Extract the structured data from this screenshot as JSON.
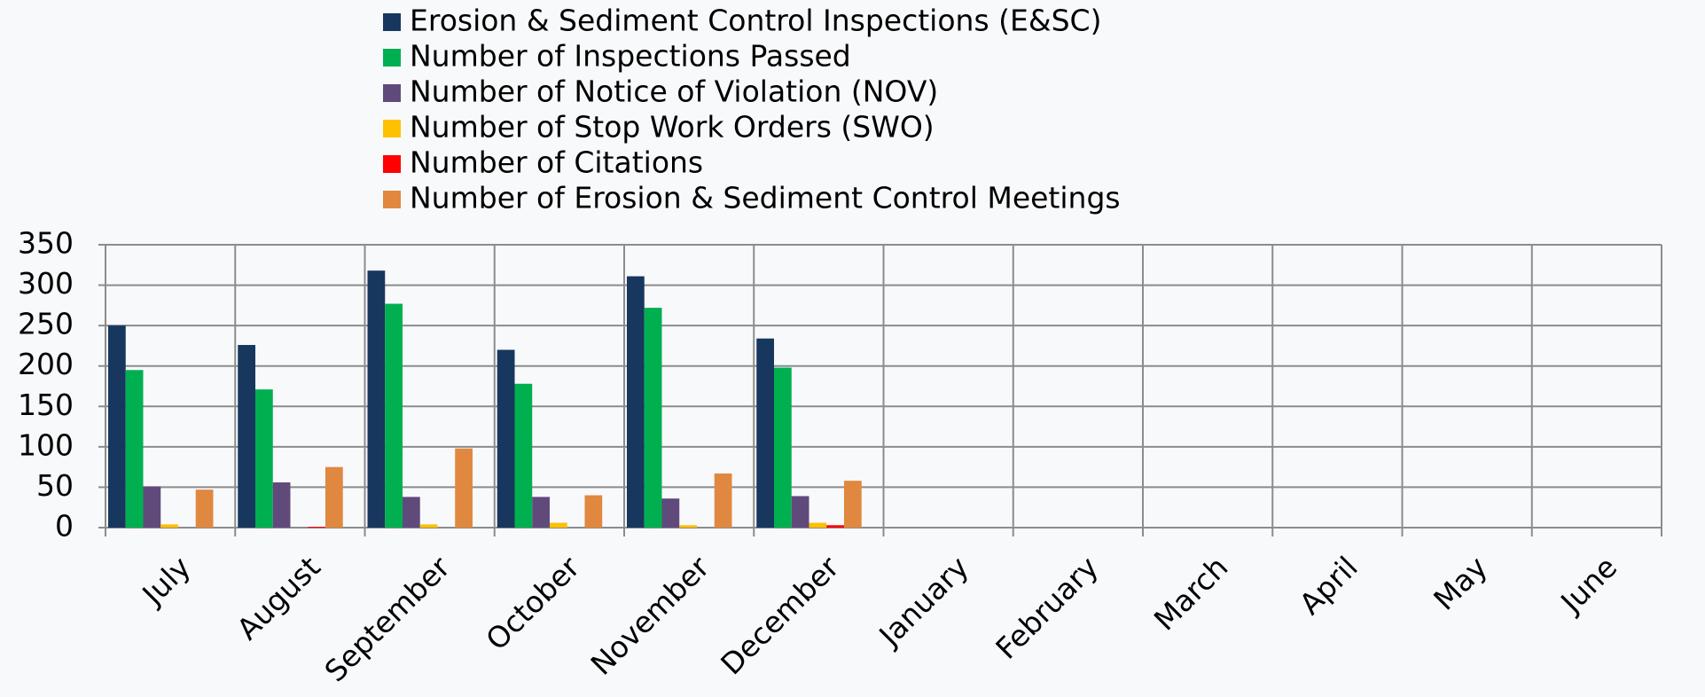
{
  "chart_data": {
    "type": "bar",
    "categories": [
      "July",
      "August",
      "September",
      "October",
      "November",
      "December",
      "January",
      "February",
      "March",
      "April",
      "May",
      "June"
    ],
    "series": [
      {
        "name": "Erosion & Sediment Control Inspections (E&SC)",
        "color": "#17375e",
        "values": [
          250,
          226,
          318,
          220,
          311,
          234,
          null,
          null,
          null,
          null,
          null,
          null
        ]
      },
      {
        "name": "Number of Inspections Passed",
        "color": "#00b050",
        "values": [
          195,
          171,
          277,
          178,
          272,
          198,
          null,
          null,
          null,
          null,
          null,
          null
        ]
      },
      {
        "name": "Number of Notice of Violation (NOV)",
        "color": "#604a7b",
        "values": [
          51,
          56,
          38,
          38,
          36,
          39,
          null,
          null,
          null,
          null,
          null,
          null
        ]
      },
      {
        "name": "Number of Stop Work Orders (SWO)",
        "color": "#ffc000",
        "values": [
          4,
          0,
          4,
          6,
          3,
          6,
          null,
          null,
          null,
          null,
          null,
          null
        ]
      },
      {
        "name": "Number of Citations",
        "color": "#ff0000",
        "values": [
          0,
          1,
          0,
          0,
          0,
          3,
          null,
          null,
          null,
          null,
          null,
          null
        ]
      },
      {
        "name": "Number of Erosion & Sediment Control Meetings",
        "color": "#e0883f",
        "values": [
          47,
          75,
          98,
          40,
          67,
          58,
          null,
          null,
          null,
          null,
          null,
          null
        ]
      }
    ],
    "ylim": [
      0,
      350
    ],
    "yticks": [
      0,
      50,
      100,
      150,
      200,
      250,
      300,
      350
    ],
    "grid": true,
    "legend": "top"
  }
}
